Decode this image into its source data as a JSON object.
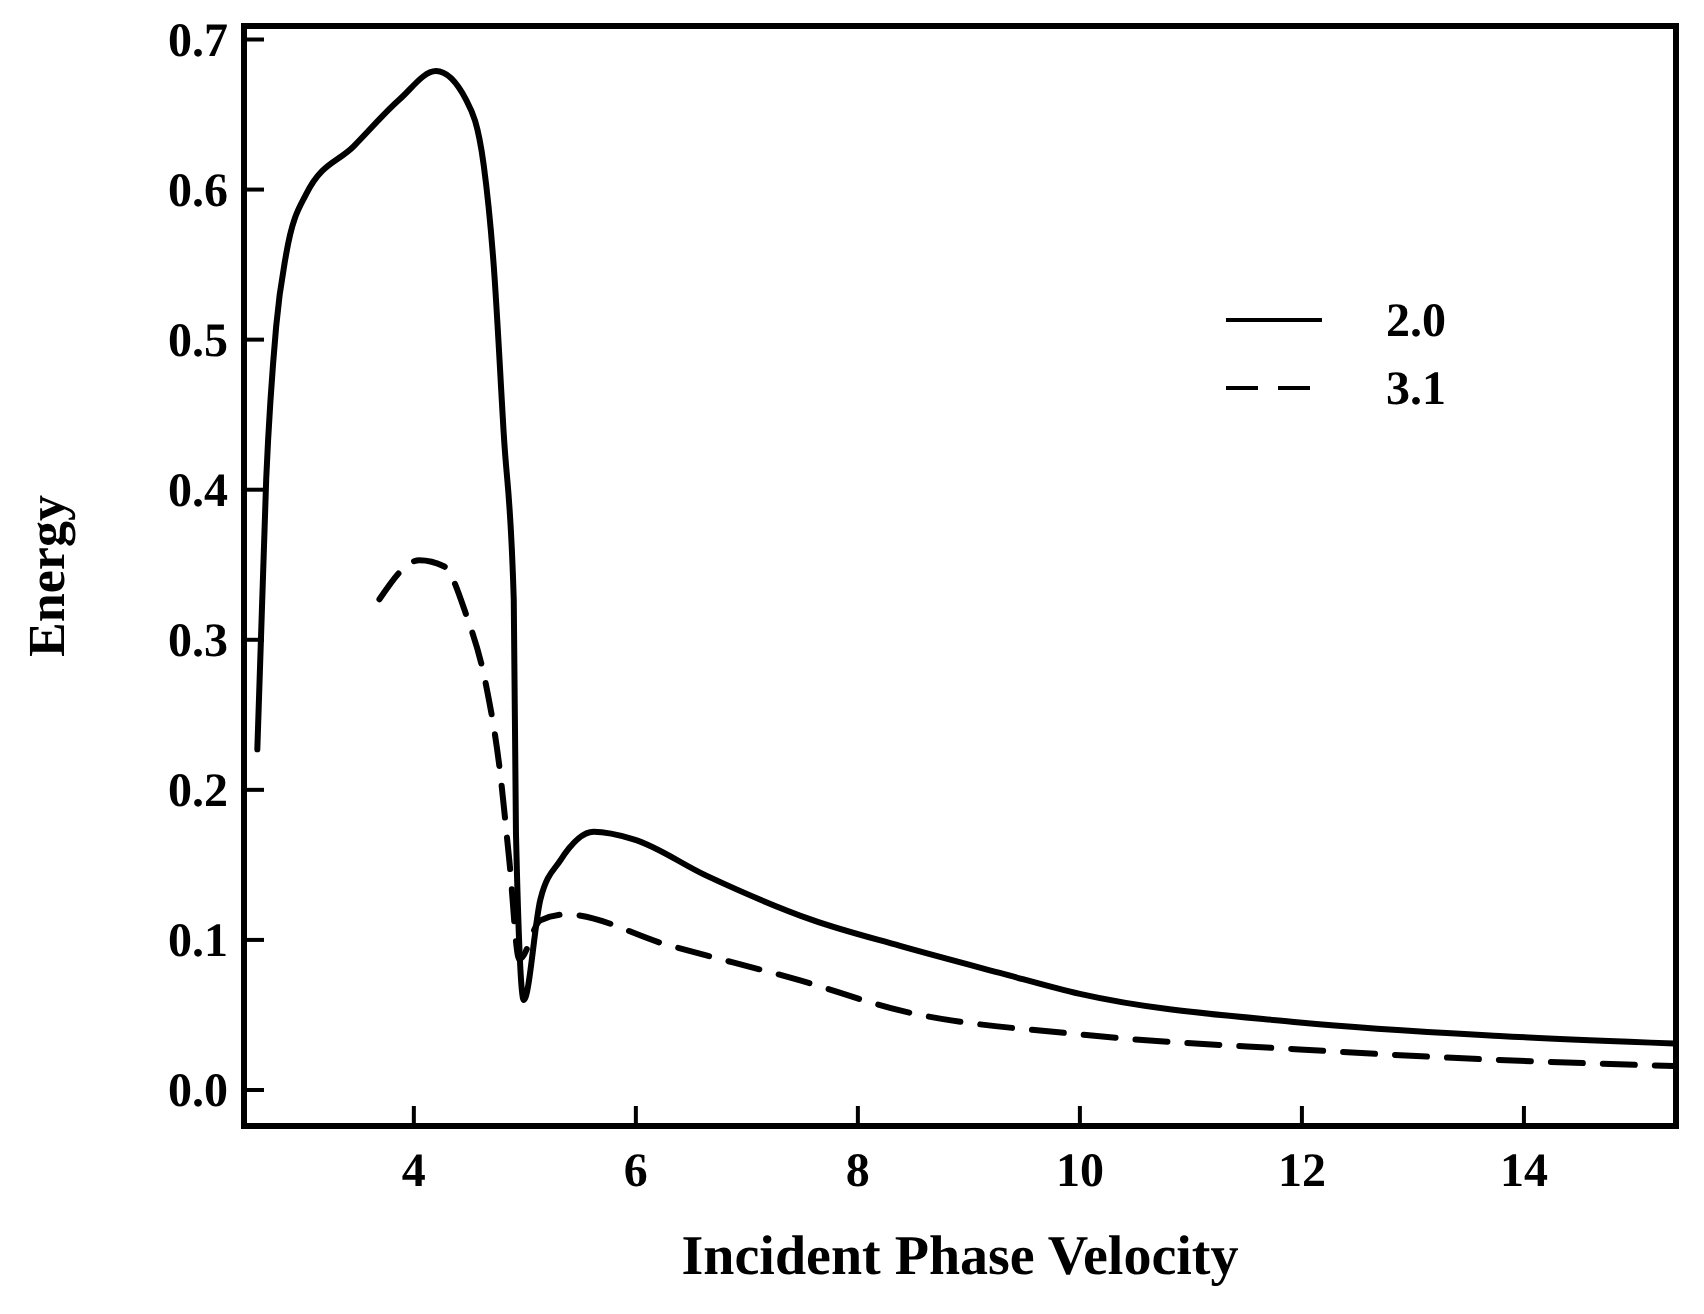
{
  "chart_data": {
    "type": "line",
    "xlabel": "Incident Phase Velocity",
    "ylabel": "Energy",
    "xlim": [
      2.47,
      15.37
    ],
    "ylim": [
      -0.024,
      0.709
    ],
    "xticks": [
      4,
      6,
      8,
      10,
      12,
      14
    ],
    "yticks": [
      {
        "value": 0,
        "label": "0.0"
      },
      {
        "value": 0.1,
        "label": "0.1"
      },
      {
        "value": 0.2,
        "label": "0.2"
      },
      {
        "value": 0.3,
        "label": "0.3"
      },
      {
        "value": 0.4,
        "label": "0.4"
      },
      {
        "value": 0.5,
        "label": "0.5"
      },
      {
        "value": 0.6,
        "label": "0.6"
      },
      {
        "value": 0.7,
        "label": "0.7"
      }
    ],
    "legend": "top right",
    "grid": false,
    "marker": "none",
    "series": [
      {
        "name": "2.0",
        "color": "#000000",
        "line_style": "solid",
        "x": [
          2.59,
          2.67,
          2.76,
          2.85,
          3.03,
          3.46,
          3.87,
          4.2,
          4.47,
          4.63,
          4.72,
          4.81,
          4.9,
          4.92,
          4.99,
          5.14,
          5.32,
          5.62,
          5.98,
          6.63,
          7.6,
          8.38,
          9.28,
          10.0,
          11.98,
          13.78,
          15.35
        ],
        "values": [
          0.227,
          0.407,
          0.509,
          0.557,
          0.597,
          0.629,
          0.66,
          0.679,
          0.66,
          0.616,
          0.549,
          0.437,
          0.327,
          0.171,
          0.06,
          0.127,
          0.153,
          0.172,
          0.167,
          0.143,
          0.113,
          0.096,
          0.078,
          0.064,
          0.045,
          0.036,
          0.031
        ]
      },
      {
        "name": "3.1",
        "color": "#000000",
        "line_style": "dashed",
        "x": [
          3.69,
          4.05,
          4.27,
          4.47,
          4.65,
          4.77,
          4.86,
          4.95,
          5.14,
          5.37,
          6.27,
          7.48,
          8.38,
          10.0,
          11.98,
          13.78,
          15.35
        ],
        "values": [
          0.327,
          0.353,
          0.349,
          0.317,
          0.27,
          0.216,
          0.153,
          0.087,
          0.113,
          0.117,
          0.097,
          0.073,
          0.053,
          0.037,
          0.027,
          0.02,
          0.016
        ]
      }
    ]
  }
}
